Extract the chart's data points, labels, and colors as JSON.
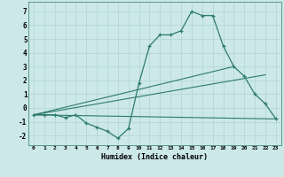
{
  "xlabel": "Humidex (Indice chaleur)",
  "background_color": "#cce8e8",
  "grid_color": "#b0d4d4",
  "line_color": "#2d7a6e",
  "xlim": [
    -0.5,
    23.5
  ],
  "ylim": [
    -2.7,
    7.7
  ],
  "xticks": [
    0,
    1,
    2,
    3,
    4,
    5,
    6,
    7,
    8,
    9,
    10,
    11,
    12,
    13,
    14,
    15,
    16,
    17,
    18,
    19,
    20,
    21,
    22,
    23
  ],
  "yticks": [
    -2,
    -1,
    0,
    1,
    2,
    3,
    4,
    5,
    6,
    7
  ],
  "main_x": [
    0,
    1,
    2,
    3,
    4,
    5,
    6,
    7,
    8,
    9,
    10,
    11,
    12,
    13,
    14,
    15,
    16,
    17,
    18,
    19,
    20,
    21,
    22,
    23
  ],
  "main_y": [
    -0.5,
    -0.5,
    -0.5,
    -0.7,
    -0.5,
    -1.1,
    -1.4,
    -1.7,
    -2.2,
    -1.5,
    1.8,
    4.5,
    5.3,
    5.3,
    5.6,
    7.0,
    6.7,
    6.7,
    4.5,
    3.0,
    2.3,
    1.0,
    0.3,
    -0.8
  ],
  "line1_x": [
    0,
    23
  ],
  "line1_y": [
    -0.5,
    -0.8
  ],
  "line2_x": [
    0,
    22
  ],
  "line2_y": [
    -0.5,
    2.4
  ],
  "line3_x": [
    0,
    19
  ],
  "line3_y": [
    -0.5,
    3.0
  ]
}
